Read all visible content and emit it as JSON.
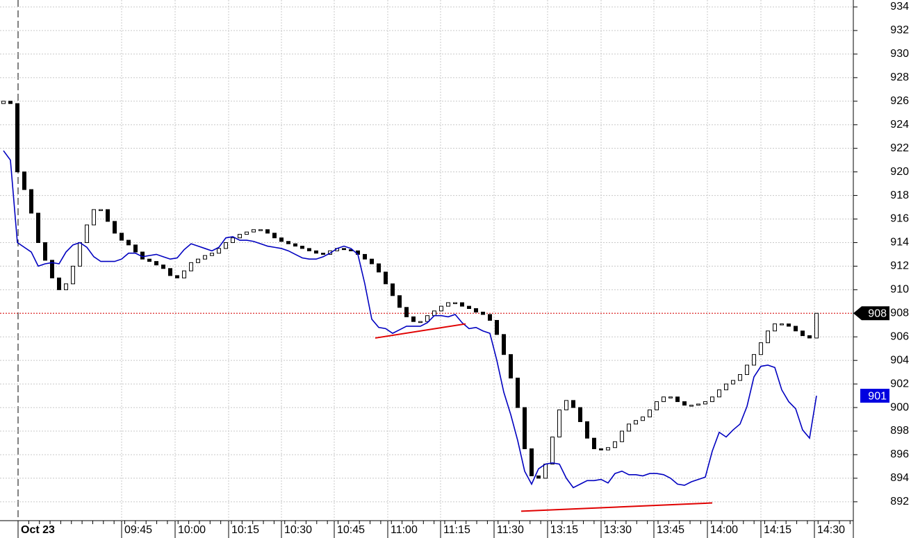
{
  "chart_data": {
    "type": "candlestick",
    "ylim": [
      890.4,
      934.59
    ],
    "yticks": [
      892,
      894,
      896,
      898,
      900,
      902,
      904,
      906,
      908,
      910,
      912,
      914,
      916,
      918,
      920,
      922,
      924,
      926,
      928,
      930,
      932,
      934
    ],
    "x_labels": [
      "Oct 23",
      "09:45",
      "10:00",
      "10:15",
      "10:30",
      "10:45",
      "11:00",
      "11:15",
      "11:30",
      "13:15",
      "13:30",
      "13:45",
      "14:00",
      "14:15",
      "14:30"
    ],
    "grid": true,
    "candles": [
      [
        925.8,
        926
      ],
      [
        926,
        925.8
      ],
      [
        925.8,
        920
      ],
      [
        920,
        918.5
      ],
      [
        918.5,
        916.5
      ],
      [
        916.5,
        914
      ],
      [
        914,
        912.5
      ],
      [
        912.5,
        911
      ],
      [
        911,
        910
      ],
      [
        910,
        910.5
      ],
      [
        910.5,
        912
      ],
      [
        912,
        914
      ],
      [
        914,
        915.5
      ],
      [
        915.5,
        916.8
      ],
      [
        916.8,
        916.8
      ],
      [
        916.8,
        915.8
      ],
      [
        915.8,
        914.8
      ],
      [
        914.8,
        914.2
      ],
      [
        914.2,
        913.8
      ],
      [
        913.8,
        913.2
      ],
      [
        913.2,
        912.6
      ],
      [
        912.6,
        912.4
      ],
      [
        912.4,
        912.1
      ],
      [
        912.1,
        911.8
      ],
      [
        911.8,
        911.2
      ],
      [
        911.2,
        911
      ],
      [
        911,
        911.6
      ],
      [
        911.6,
        912.3
      ],
      [
        912.3,
        912.6
      ],
      [
        912.6,
        912.9
      ],
      [
        912.9,
        913.1
      ],
      [
        913.1,
        913.5
      ],
      [
        913.5,
        914
      ],
      [
        914,
        914.4
      ],
      [
        914.4,
        914.7
      ],
      [
        914.7,
        914.9
      ],
      [
        914.9,
        915.1
      ],
      [
        915.1,
        915.1
      ],
      [
        915.1,
        914.8
      ],
      [
        914.8,
        914.4
      ],
      [
        914.4,
        914.1
      ],
      [
        914.1,
        913.9
      ],
      [
        913.9,
        913.7
      ],
      [
        913.7,
        913.5
      ],
      [
        913.5,
        913.3
      ],
      [
        913.3,
        913.1
      ],
      [
        913.1,
        913
      ],
      [
        913,
        913.3
      ],
      [
        913.3,
        913.5
      ],
      [
        913.5,
        913.4
      ],
      [
        913.4,
        913.3
      ],
      [
        913.3,
        913
      ],
      [
        913,
        912.6
      ],
      [
        912.6,
        912.2
      ],
      [
        912.2,
        911.5
      ],
      [
        911.5,
        910.5
      ],
      [
        910.5,
        909.5
      ],
      [
        909.5,
        908.5
      ],
      [
        908.5,
        907.7
      ],
      [
        907.7,
        907.3
      ],
      [
        907.3,
        907.3
      ],
      [
        907.3,
        907.8
      ],
      [
        907.8,
        908.2
      ],
      [
        908.2,
        908.6
      ],
      [
        908.6,
        908.9
      ],
      [
        908.9,
        908.9
      ],
      [
        908.9,
        908.6
      ],
      [
        908.6,
        908.4
      ],
      [
        908.4,
        908.1
      ],
      [
        908.1,
        907.9
      ],
      [
        907.9,
        907.4
      ],
      [
        907.4,
        906.2
      ],
      [
        906.2,
        904.5
      ],
      [
        904.5,
        902.5
      ],
      [
        902.5,
        900
      ],
      [
        900,
        896.5
      ],
      [
        896.5,
        894.2
      ],
      [
        894.2,
        894
      ],
      [
        894,
        895.2
      ],
      [
        895.2,
        897.5
      ],
      [
        897.5,
        899.8
      ],
      [
        899.8,
        900.6
      ],
      [
        900.6,
        900
      ],
      [
        900,
        898.8
      ],
      [
        898.8,
        897.4
      ],
      [
        897.4,
        896.5
      ],
      [
        896.5,
        896.4
      ],
      [
        896.4,
        896.6
      ],
      [
        896.6,
        897.1
      ],
      [
        897.1,
        898
      ],
      [
        898,
        898.6
      ],
      [
        898.6,
        898.9
      ],
      [
        898.9,
        899.2
      ],
      [
        899.2,
        899.8
      ],
      [
        899.8,
        900.5
      ],
      [
        900.5,
        900.9
      ],
      [
        900.9,
        900.9
      ],
      [
        900.9,
        900.5
      ],
      [
        900.5,
        900.2
      ],
      [
        900.2,
        900.2
      ],
      [
        900.2,
        900.3
      ],
      [
        900.3,
        900.5
      ],
      [
        900.5,
        900.9
      ],
      [
        900.9,
        901.5
      ],
      [
        901.5,
        902
      ],
      [
        902,
        902.3
      ],
      [
        902.3,
        902.8
      ],
      [
        902.8,
        903.6
      ],
      [
        903.6,
        904.5
      ],
      [
        904.5,
        905.5
      ],
      [
        905.5,
        906.5
      ],
      [
        906.5,
        907.1
      ],
      [
        907.1,
        907.1
      ],
      [
        907.1,
        906.9
      ],
      [
        906.9,
        906.5
      ],
      [
        906.5,
        906.1
      ],
      [
        906.1,
        905.9
      ],
      [
        905.9,
        908
      ]
    ],
    "line": {
      "color": "#0000c0",
      "values": [
        921.8,
        921,
        914,
        913.6,
        913.2,
        912,
        912.2,
        912.3,
        912.2,
        913.2,
        913.8,
        914,
        913.6,
        912.8,
        912.4,
        912.4,
        912.4,
        912.6,
        913.1,
        913.1,
        912.8,
        912.9,
        913,
        912.8,
        912.6,
        912.7,
        913.4,
        913.9,
        913.7,
        913.5,
        913.3,
        913.6,
        914.4,
        914.5,
        914.2,
        914.2,
        914.1,
        913.9,
        913.7,
        913.6,
        913.5,
        913.3,
        913,
        912.7,
        912.6,
        912.6,
        912.8,
        913.1,
        913.5,
        913.7,
        913.5,
        913,
        910.5,
        907.5,
        906.8,
        906.7,
        906.3,
        906.6,
        906.9,
        906.9,
        906.9,
        907.2,
        907.8,
        907.8,
        907.7,
        907.9,
        907.2,
        906.7,
        906.8,
        906.5,
        906.3,
        904,
        901.3,
        899.4,
        897.2,
        894.6,
        893.5,
        894.8,
        895.2,
        895.3,
        895.2,
        894,
        893.2,
        893.5,
        893.8,
        893.8,
        893.9,
        893.6,
        894.4,
        894.6,
        894.3,
        894.3,
        894.2,
        894.4,
        894.4,
        894.3,
        894,
        893.5,
        893.4,
        893.7,
        893.9,
        894.1,
        896.3,
        897.9,
        897.5,
        898.1,
        898.6,
        900.1,
        902.6,
        903.5,
        903.6,
        903.4,
        901.5,
        900.5,
        899.9,
        898.1,
        897.4,
        901
      ]
    },
    "trendlines": [
      {
        "color": "#e00000",
        "values": [
          905.9,
          907.1
        ]
      },
      {
        "color": "#e00000",
        "values": [
          891.2,
          891.9
        ]
      }
    ],
    "price_marker": 908,
    "line_marker": 901
  }
}
